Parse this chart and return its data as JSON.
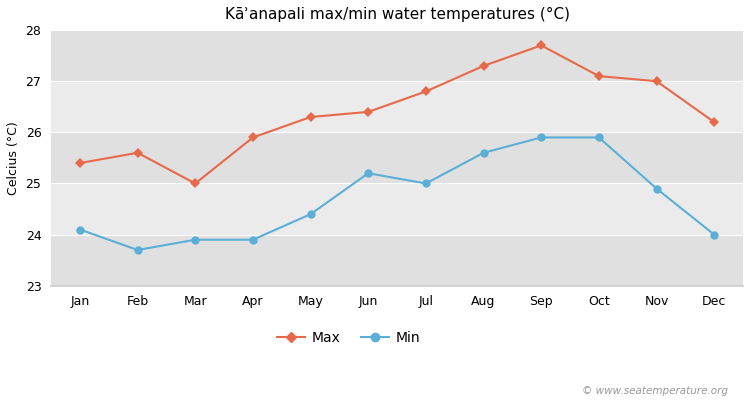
{
  "title": "Kāʾanapali max/min water temperatures (°C)",
  "ylabel": "Celcius (°C)",
  "months": [
    "Jan",
    "Feb",
    "Mar",
    "Apr",
    "May",
    "Jun",
    "Jul",
    "Aug",
    "Sep",
    "Oct",
    "Nov",
    "Dec"
  ],
  "max_values": [
    25.4,
    25.6,
    25.0,
    25.9,
    26.3,
    26.4,
    26.8,
    27.3,
    27.7,
    27.1,
    27.0,
    26.2
  ],
  "min_values": [
    24.1,
    23.7,
    23.9,
    23.9,
    24.4,
    25.2,
    25.0,
    25.6,
    25.9,
    25.9,
    24.9,
    24.0
  ],
  "max_color": "#e8694a",
  "min_color": "#5bafd6",
  "background_color": "#ffffff",
  "plot_bg_light": "#ebebeb",
  "plot_bg_dark": "#e0e0e0",
  "ylim": [
    23,
    28
  ],
  "yticks": [
    23,
    24,
    25,
    26,
    27,
    28
  ],
  "watermark": "© www.seatemperature.org",
  "legend_max": "Max",
  "legend_min": "Min",
  "grid_color": "#ffffff",
  "spine_color": "#cccccc"
}
